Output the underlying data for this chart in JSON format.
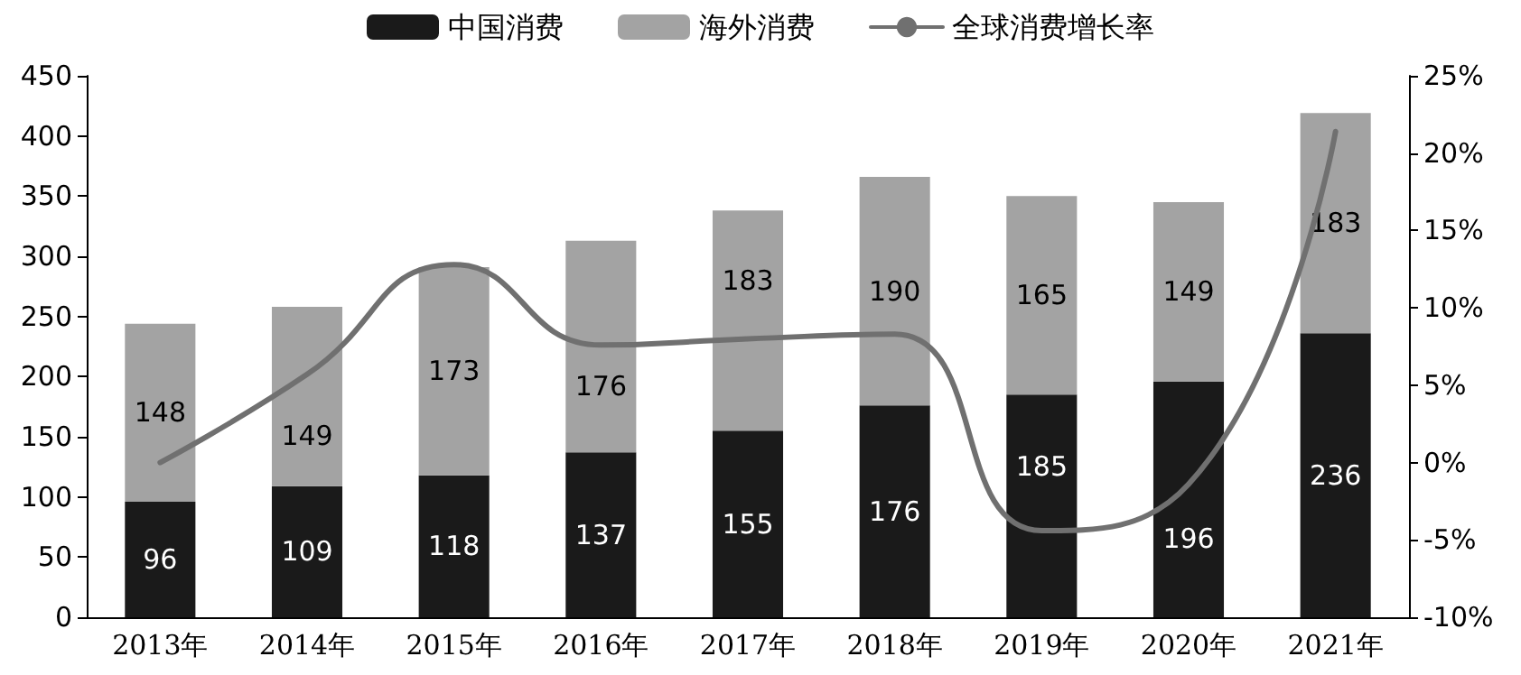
{
  "chart_data": {
    "type": "bar",
    "stacked": true,
    "categories": [
      "2013年",
      "2014年",
      "2015年",
      "2016年",
      "2017年",
      "2018年",
      "2019年",
      "2020年",
      "2021年"
    ],
    "series": [
      {
        "name": "中国消费",
        "color": "#1a1a1a",
        "values": [
          96,
          109,
          118,
          137,
          155,
          176,
          185,
          196,
          236
        ],
        "value_labels": [
          "96",
          "109",
          "118",
          "137",
          "155",
          "176",
          "185",
          "196",
          "236"
        ]
      },
      {
        "name": "海外消费",
        "color": "#a3a3a3",
        "values": [
          148,
          149,
          173,
          176,
          183,
          190,
          165,
          149,
          183
        ],
        "value_labels": [
          "148",
          "149",
          "173",
          "176",
          "183",
          "190",
          "165",
          "149",
          "183"
        ]
      },
      {
        "name": "全球消费增长率",
        "type": "line",
        "axis": "y2",
        "color": "#707070",
        "values": [
          0,
          5.7,
          12.8,
          7.6,
          8,
          8.3,
          -4.4,
          -1.4,
          21.4
        ]
      }
    ],
    "legend": "top",
    "grid": false,
    "ylim": [
      0,
      450
    ],
    "yticks": [
      0,
      50,
      100,
      150,
      200,
      250,
      300,
      350,
      400,
      450
    ],
    "y2lim": [
      -10,
      25
    ],
    "y2ticks": [
      {
        "value": -10,
        "label": "-10%"
      },
      {
        "value": -5,
        "label": "-5%"
      },
      {
        "value": 0,
        "label": "0%"
      },
      {
        "value": 5,
        "label": "5%"
      },
      {
        "value": 10,
        "label": "10%"
      },
      {
        "value": 15,
        "label": "15%"
      },
      {
        "value": 20,
        "label": "20%"
      },
      {
        "value": 25,
        "label": "25%"
      }
    ]
  }
}
